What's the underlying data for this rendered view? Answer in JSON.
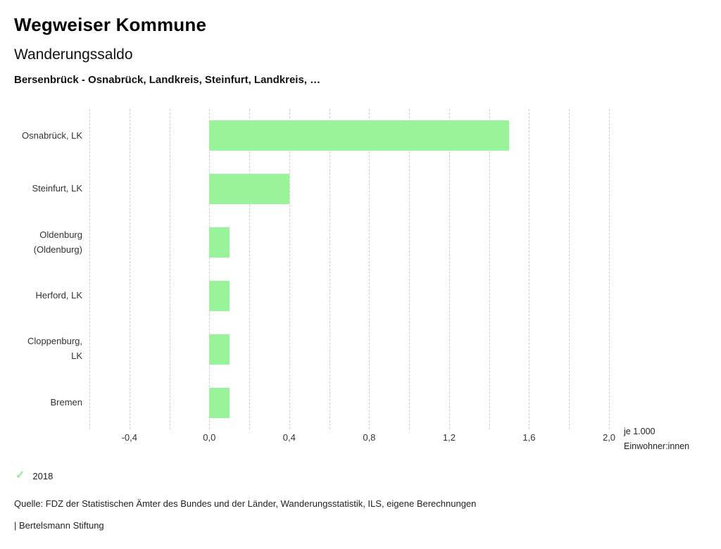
{
  "header": {
    "title": "Wegweiser Kommune",
    "subtitle": "Wanderungssaldo",
    "chart_title": "Bersenbrück - Osnabrück, Landkreis, Steinfurt, Landkreis, …"
  },
  "chart_data": {
    "type": "bar",
    "orientation": "horizontal",
    "title": "Wanderungssaldo",
    "categories": [
      "Osnabrück, LK",
      "Steinfurt, LK",
      "Oldenburg (Oldenburg)",
      "Herford, LK",
      "Cloppenburg, LK",
      "Bremen"
    ],
    "category_lines": [
      [
        "Osnabrück, LK"
      ],
      [
        "Steinfurt, LK"
      ],
      [
        "Oldenburg",
        "(Oldenburg)"
      ],
      [
        "Herford, LK"
      ],
      [
        "Cloppenburg,",
        "LK"
      ],
      [
        "Bremen"
      ]
    ],
    "series": [
      {
        "name": "2018",
        "values": [
          1.5,
          0.4,
          0.1,
          0.1,
          0.1,
          0.1
        ]
      }
    ],
    "xlim": [
      -0.6,
      2.0
    ],
    "gridline_step": 0.2,
    "grid": true,
    "ticks": [
      {
        "value": -0.4,
        "label": "-0,4"
      },
      {
        "value": 0.0,
        "label": "0,0"
      },
      {
        "value": 0.4,
        "label": "0,4"
      },
      {
        "value": 0.8,
        "label": "0,8"
      },
      {
        "value": 1.2,
        "label": "1,2"
      },
      {
        "value": 1.6,
        "label": "1,6"
      },
      {
        "value": 2.0,
        "label": "2,0"
      }
    ],
    "xlabel_lines": [
      "je 1.000",
      "Einwohner:innen"
    ],
    "bar_color": "#99F499",
    "gridline_color": "#cccccc",
    "legend_position": "bottom-left"
  },
  "legend": {
    "items": [
      {
        "label": "2018",
        "color": "#8BEF8B",
        "icon": "check-icon"
      }
    ]
  },
  "footer": {
    "source": "Quelle: FDZ der Statistischen Ämter des Bundes und der Länder, Wanderungsstatistik, ILS, eigene Berechnungen",
    "branding": "| Bertelsmann Stiftung"
  }
}
